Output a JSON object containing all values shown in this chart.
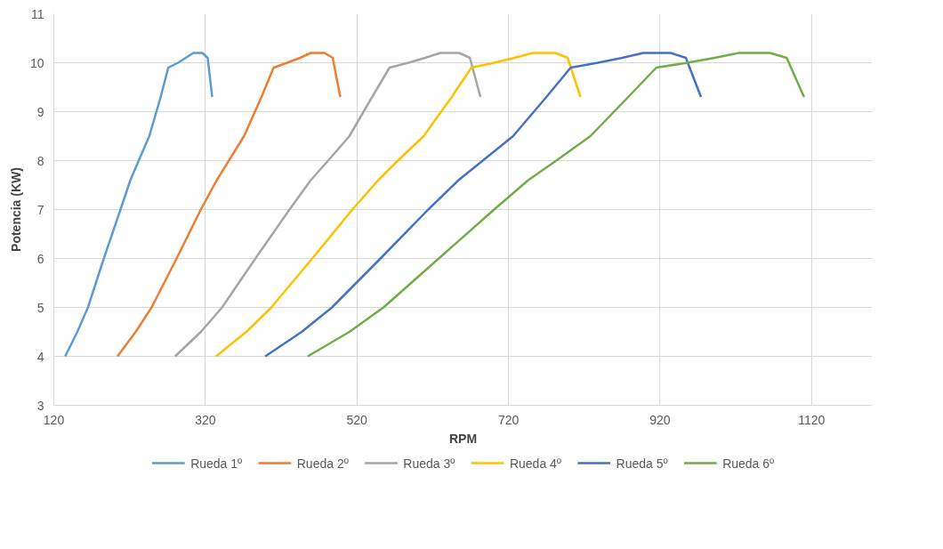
{
  "chart_data": {
    "type": "line",
    "xlabel": "RPM",
    "ylabel": "Potencia (KW)",
    "xlim": [
      120,
      1200
    ],
    "xticks": [
      120,
      320,
      520,
      720,
      920,
      1120
    ],
    "ylim": [
      3,
      11
    ],
    "yticks": [
      3,
      4,
      5,
      6,
      7,
      8,
      9,
      10,
      11
    ],
    "grid": true,
    "legend": "bottom",
    "marker": "none",
    "line_style": "solid",
    "series": [
      {
        "name": "Rueda 1º",
        "color": "#5b9bd5",
        "x": [
          135,
          151,
          165,
          186,
          208,
          221,
          232,
          246,
          261,
          271,
          284,
          294,
          304,
          311,
          316,
          323,
          329
        ],
        "values": [
          4,
          4.5,
          5,
          6,
          7,
          7.6,
          8,
          8.5,
          9.3,
          9.9,
          10,
          10.1,
          10.2,
          10.2,
          10.2,
          10.1,
          9.3
        ]
      },
      {
        "name": "Rueda 2º",
        "color": "#ed7d31",
        "x": [
          204,
          228,
          249,
          282,
          314,
          335,
          351,
          371,
          394,
          410,
          428,
          445,
          459,
          469,
          477,
          488,
          498
        ],
        "values": [
          4,
          4.5,
          5,
          6,
          7,
          7.6,
          8,
          8.5,
          9.3,
          9.9,
          10,
          10.1,
          10.2,
          10.2,
          10.2,
          10.1,
          9.3
        ]
      },
      {
        "name": "Rueda 3º",
        "color": "#a5a5a5",
        "x": [
          280,
          314,
          342,
          386,
          431,
          459,
          482,
          510,
          540,
          563,
          588,
          610,
          630,
          644,
          655,
          669,
          683
        ],
        "values": [
          4,
          4.5,
          5,
          6,
          7,
          7.6,
          8,
          8.5,
          9.3,
          9.9,
          10,
          10.1,
          10.2,
          10.2,
          10.2,
          10.1,
          9.3
        ]
      },
      {
        "name": "Rueda 4º",
        "color": "#ffc000",
        "x": [
          334,
          374,
          407,
          461,
          514,
          548,
          574,
          608,
          645,
          671,
          701,
          728,
          752,
          768,
          782,
          798,
          815
        ],
        "values": [
          4,
          4.5,
          5,
          6,
          7,
          7.6,
          8,
          8.5,
          9.3,
          9.9,
          10,
          10.1,
          10.2,
          10.2,
          10.2,
          10.1,
          9.3
        ]
      },
      {
        "name": "Rueda 5º",
        "color": "#4472c4",
        "x": [
          399,
          447,
          487,
          551,
          614,
          654,
          686,
          726,
          770,
          802,
          838,
          870,
          898,
          918,
          934,
          954,
          974
        ],
        "values": [
          4,
          4.5,
          5,
          6,
          7,
          7.6,
          8,
          8.5,
          9.3,
          9.9,
          10,
          10.1,
          10.2,
          10.2,
          10.2,
          10.1,
          9.3
        ]
      },
      {
        "name": "Rueda 6º",
        "color": "#70ad47",
        "x": [
          455,
          510,
          555,
          628,
          701,
          746,
          783,
          828,
          878,
          915,
          956,
          992,
          1024,
          1047,
          1065,
          1087,
          1110
        ],
        "values": [
          4,
          4.5,
          5,
          6,
          7,
          7.6,
          8,
          8.5,
          9.3,
          9.9,
          10,
          10.1,
          10.2,
          10.2,
          10.2,
          10.1,
          9.3
        ]
      }
    ]
  }
}
